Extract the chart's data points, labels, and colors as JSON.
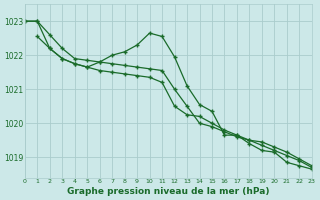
{
  "title": "Graphe pression niveau de la mer (hPa)",
  "bg_color": "#cce8e8",
  "grid_color": "#aacccc",
  "line_color": "#1a6b2a",
  "xlim": [
    0,
    23
  ],
  "ylim": [
    1018.4,
    1023.5
  ],
  "yticks": [
    1019,
    1020,
    1021,
    1022,
    1023
  ],
  "xticks": [
    0,
    1,
    2,
    3,
    4,
    5,
    6,
    7,
    8,
    9,
    10,
    11,
    12,
    13,
    14,
    15,
    16,
    17,
    18,
    19,
    20,
    21,
    22,
    23
  ],
  "series1_x": [
    0,
    1,
    2,
    3,
    4,
    5,
    6,
    7,
    8,
    9,
    10,
    11,
    12,
    13,
    14,
    15,
    16,
    17,
    18,
    19,
    20,
    21,
    22,
    23
  ],
  "series1_y": [
    1023.0,
    1023.0,
    1022.6,
    1022.2,
    1021.9,
    1021.85,
    1021.8,
    1021.75,
    1021.7,
    1021.65,
    1021.6,
    1021.55,
    1021.0,
    1020.5,
    1020.0,
    1019.9,
    1019.75,
    1019.6,
    1019.5,
    1019.45,
    1019.3,
    1019.15,
    1018.95,
    1018.75
  ],
  "series2_x": [
    1,
    2,
    3,
    4,
    5,
    6,
    7,
    8,
    9,
    10,
    11,
    12,
    13,
    14,
    15,
    16,
    17,
    18,
    19,
    20,
    21,
    22,
    23
  ],
  "series2_y": [
    1022.55,
    1022.2,
    1021.9,
    1021.75,
    1021.65,
    1021.8,
    1022.0,
    1022.1,
    1022.3,
    1022.65,
    1022.55,
    1021.95,
    1021.1,
    1020.55,
    1020.35,
    1019.65,
    1019.65,
    1019.4,
    1019.2,
    1019.15,
    1018.85,
    1018.75,
    1018.65
  ],
  "series3_x": [
    0,
    1,
    2,
    3,
    4,
    5,
    6,
    7,
    8,
    9,
    10,
    11,
    12,
    13,
    14,
    15,
    16,
    17,
    18,
    19,
    20,
    21,
    22,
    23
  ],
  "series3_y": [
    1023.0,
    1023.0,
    1022.2,
    1021.9,
    1021.75,
    1021.65,
    1021.55,
    1021.5,
    1021.45,
    1021.4,
    1021.35,
    1021.2,
    1020.5,
    1020.25,
    1020.2,
    1020.0,
    1019.8,
    1019.65,
    1019.5,
    1019.35,
    1019.2,
    1019.05,
    1018.9,
    1018.7
  ]
}
